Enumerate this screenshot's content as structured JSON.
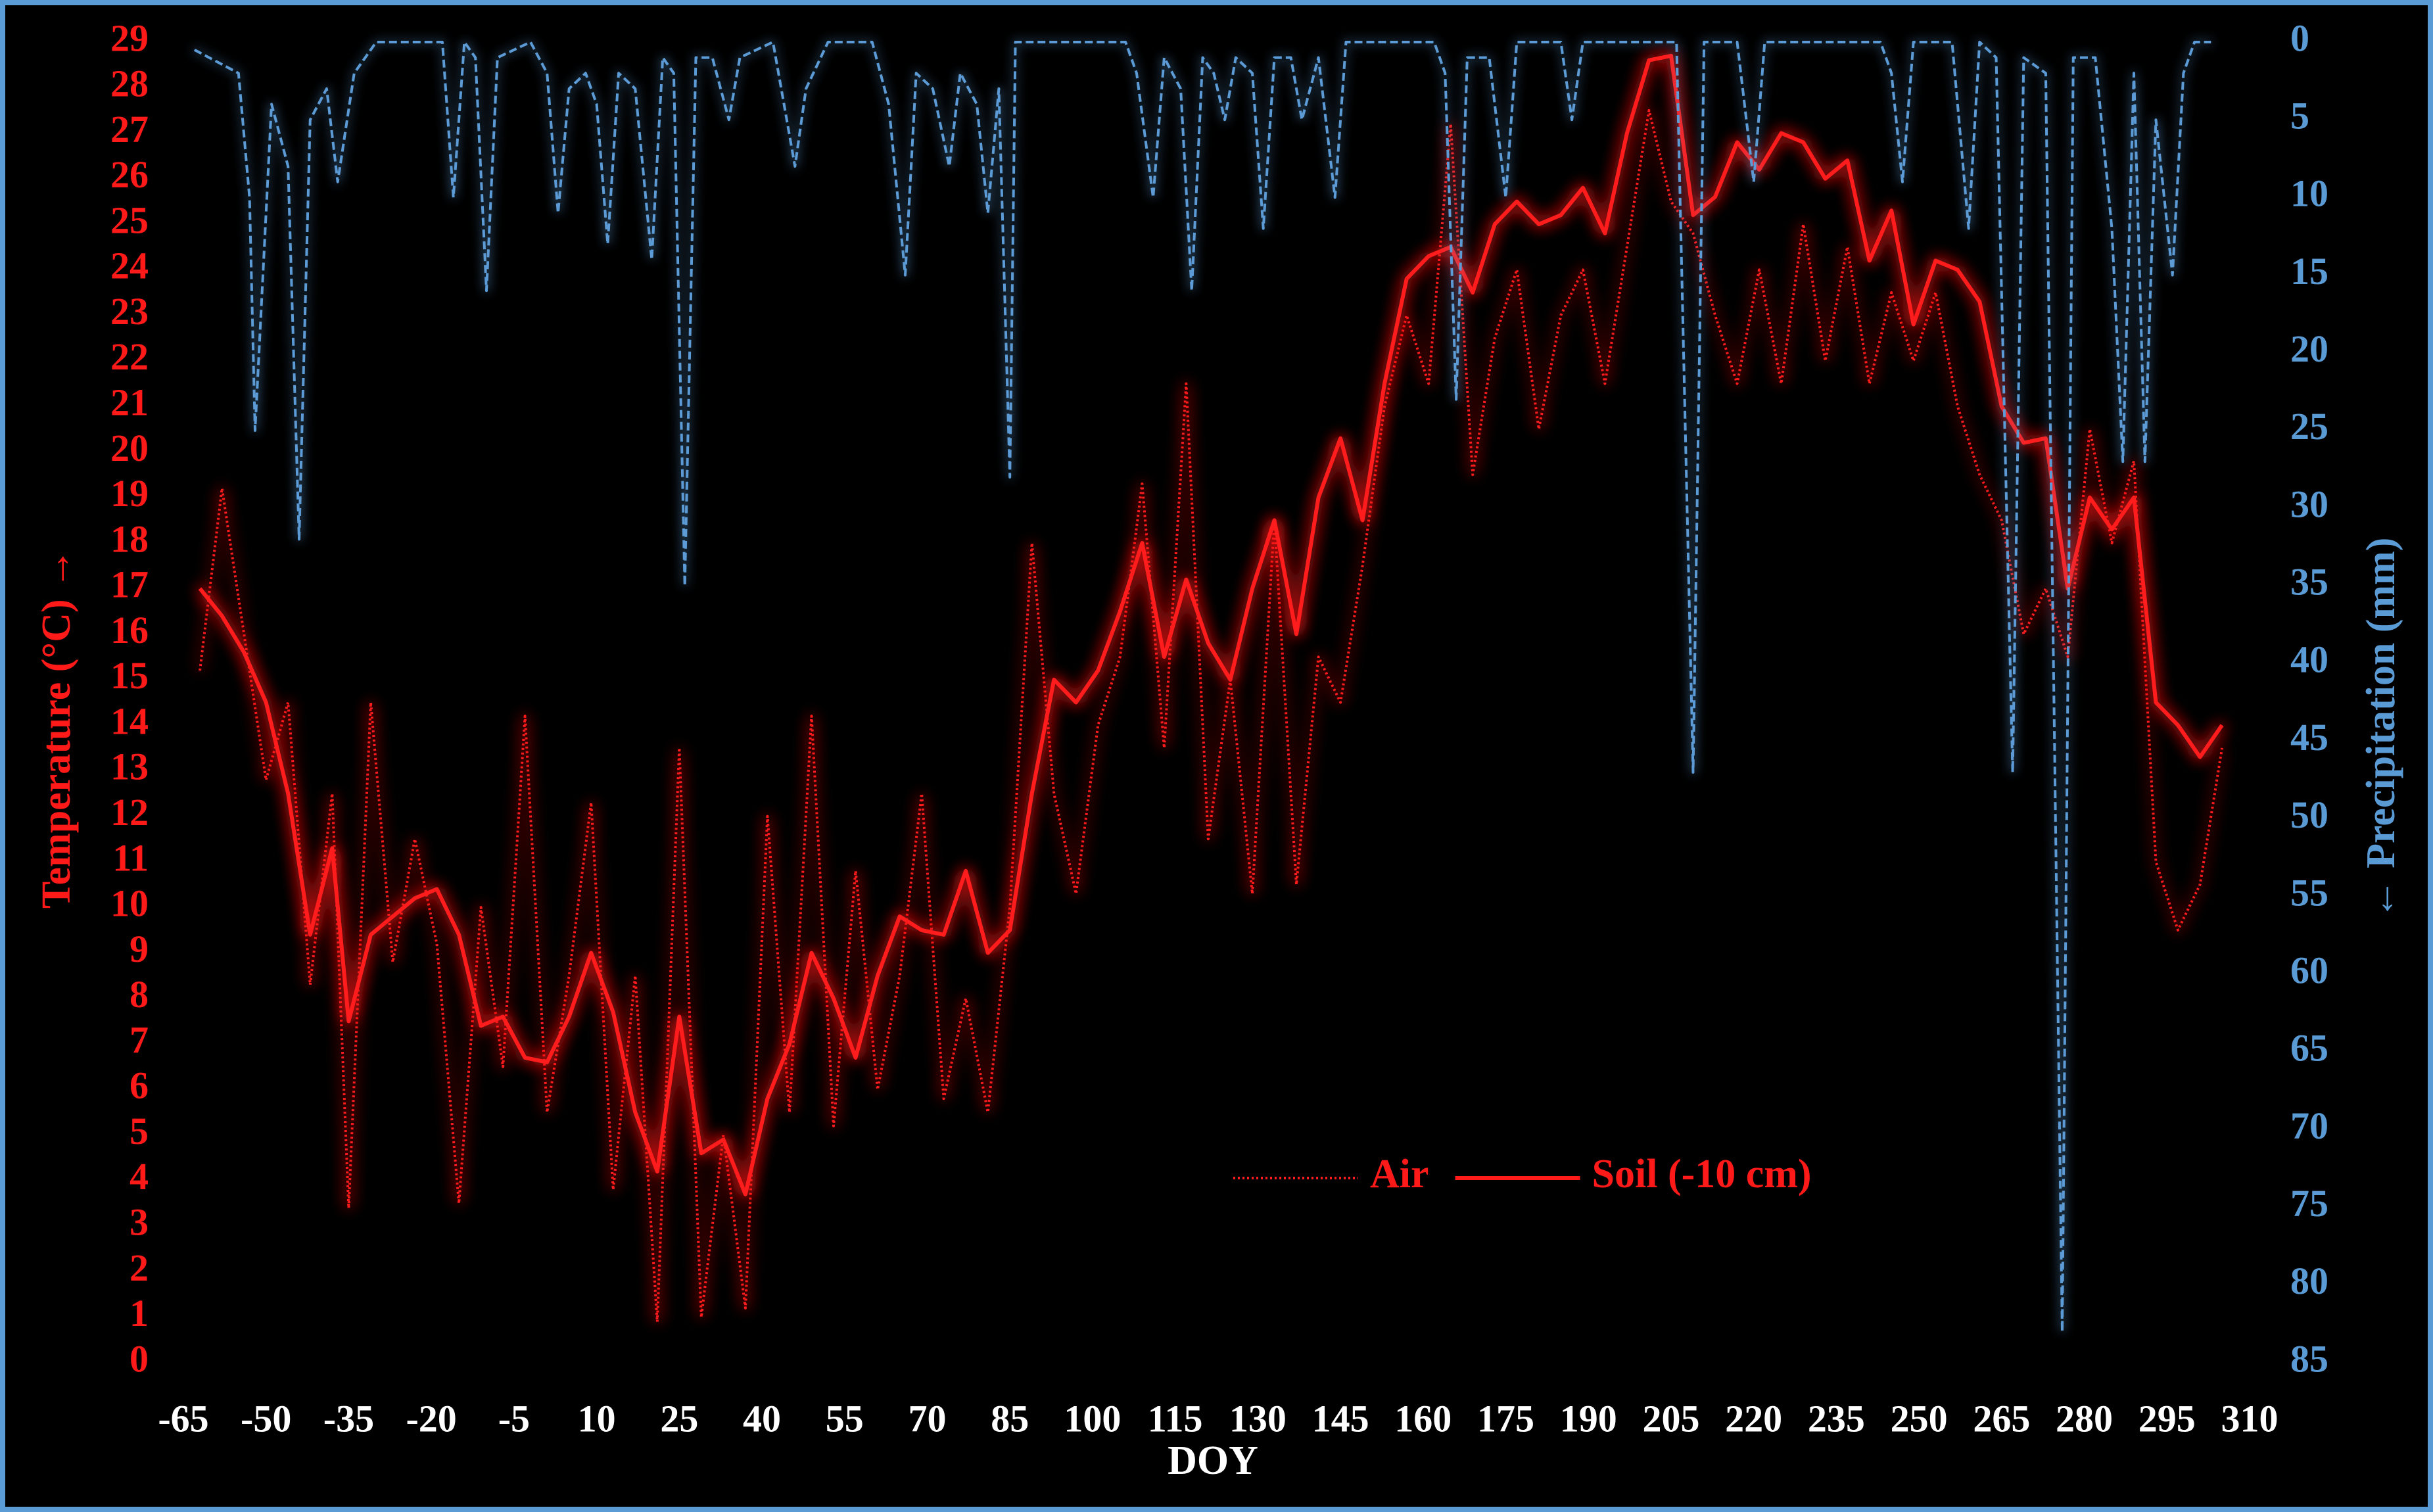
{
  "chart_data": {
    "type": "line",
    "xlabel": "DOY",
    "ylabel": "Temperature (°C) →",
    "y2label": "← Precipitation (mm)",
    "x": [
      -62,
      -58,
      -54,
      -50,
      -46,
      -42,
      -38,
      -35,
      -31,
      -27,
      -23,
      -19,
      -15,
      -11,
      -7,
      -3,
      1,
      5,
      9,
      13,
      17,
      21,
      25,
      29,
      33,
      37,
      41,
      45,
      49,
      53,
      57,
      61,
      65,
      69,
      73,
      77,
      81,
      85,
      89,
      93,
      97,
      101,
      105,
      109,
      113,
      117,
      121,
      125,
      129,
      133,
      137,
      141,
      145,
      149,
      153,
      157,
      161,
      165,
      169,
      173,
      177,
      181,
      185,
      189,
      193,
      197,
      201,
      205,
      209,
      213,
      217,
      221,
      225,
      229,
      233,
      237,
      241,
      245,
      249,
      253,
      257,
      261,
      265,
      269,
      273,
      277,
      281,
      285,
      289,
      293,
      297,
      301,
      305
    ],
    "series": [
      {
        "name": "Air",
        "color": "#ff1a1a",
        "style": "dotted",
        "values": [
          15.2,
          19.2,
          16,
          12.8,
          14.5,
          8.3,
          12.5,
          3.4,
          14.5,
          8.8,
          11.5,
          9.2,
          3.5,
          10,
          6.5,
          14.2,
          5.5,
          8.5,
          12.3,
          3.8,
          8.5,
          0.9,
          13.5,
          1.0,
          5.0,
          1.2,
          12.0,
          5.5,
          14.2,
          5.2,
          10.8,
          6.0,
          8.5,
          12.5,
          5.8,
          8.0,
          5.5,
          10.0,
          18.0,
          12.5,
          10.3,
          14.0,
          15.5,
          19.3,
          13.5,
          21.5,
          11.5,
          15.0,
          10.3,
          18.5,
          10.5,
          15.5,
          14.5,
          17.5,
          21.0,
          23.0,
          21.5,
          27.2,
          19.5,
          22.5,
          24.0,
          20.5,
          23.0,
          24.0,
          21.5,
          24.5,
          27.5,
          25.5,
          24.8,
          23.0,
          21.5,
          24.0,
          21.5,
          25.0,
          22.0,
          24.5,
          21.5,
          23.5,
          22.0,
          23.5,
          21.0,
          19.5,
          18.5,
          16.0,
          17.0,
          15.5,
          20.5,
          18.0,
          19.8,
          11.0,
          9.5,
          10.5,
          13.5
        ]
      },
      {
        "name": "Soil (-10 cm)",
        "color": "#ff1a1a",
        "style": "solid",
        "values": [
          17,
          16.4,
          15.6,
          14.5,
          12.5,
          9.4,
          11.3,
          7.5,
          9.4,
          9.8,
          10.2,
          10.4,
          9.4,
          7.4,
          7.6,
          6.7,
          6.6,
          7.6,
          9.0,
          7.7,
          5.5,
          4.2,
          7.6,
          4.6,
          4.9,
          3.7,
          5.8,
          7.0,
          9.0,
          8.0,
          6.7,
          8.5,
          9.8,
          9.5,
          9.4,
          10.8,
          9.0,
          9.5,
          12.5,
          15.0,
          14.5,
          15.2,
          16.5,
          18.0,
          15.5,
          17.2,
          15.8,
          15.0,
          17.0,
          18.5,
          16.0,
          19.0,
          20.3,
          18.5,
          21.5,
          23.8,
          24.3,
          24.5,
          23.5,
          25.0,
          25.5,
          25.0,
          25.2,
          25.8,
          24.8,
          27.0,
          28.6,
          28.7,
          25.2,
          25.6,
          26.8,
          26.2,
          27.0,
          26.8,
          26.0,
          26.4,
          24.2,
          25.3,
          22.8,
          24.2,
          24.0,
          23.3,
          21.0,
          20.2,
          20.3,
          17.0,
          19.0,
          18.3,
          19.0,
          14.5,
          14.0,
          13.3,
          14.0
        ]
      },
      {
        "color": "#5b9bd5",
        "style": "dashed",
        "axis": "y2",
        "x": [
          -63,
          -55,
          -53,
          -52,
          -49,
          -46,
          -44,
          -42,
          -39,
          -37,
          -34,
          -30,
          -18,
          -16,
          -14,
          -12,
          -10,
          -8,
          -2,
          1,
          3,
          5,
          8,
          10,
          12,
          14,
          17,
          20,
          22,
          24,
          26,
          28,
          31,
          34,
          36,
          42,
          44,
          46,
          48,
          52,
          60,
          63,
          66,
          68,
          71,
          74,
          76,
          79,
          81,
          83,
          85,
          86,
          106,
          108,
          111,
          113,
          116,
          118,
          120,
          122,
          124,
          126,
          129,
          131,
          133,
          136,
          138,
          141,
          144,
          146,
          162,
          164,
          166,
          168,
          172,
          175,
          177,
          185,
          187,
          189,
          206,
          209,
          211,
          217,
          220,
          222,
          243,
          245,
          247,
          249,
          256,
          259,
          261,
          264,
          267,
          269,
          273,
          276,
          278,
          282,
          285,
          287,
          289,
          291,
          293,
          296,
          298,
          300,
          303
        ],
        "values": [
          0.5,
          2,
          10,
          25,
          4,
          8,
          32,
          5,
          3,
          9,
          2,
          0,
          0,
          10,
          0,
          1,
          16,
          1,
          0,
          2,
          11,
          3,
          2,
          4,
          13,
          2,
          3,
          14,
          1,
          2,
          35,
          1,
          1,
          5,
          1,
          0,
          4,
          8,
          3,
          0,
          0,
          4,
          15,
          2,
          3,
          8,
          2,
          4,
          11,
          3,
          28,
          0,
          0,
          2,
          10,
          1,
          3,
          16,
          1,
          2,
          5,
          1,
          2,
          12,
          1,
          1,
          5,
          1,
          10,
          0,
          0,
          2,
          23,
          1,
          1,
          10,
          0,
          0,
          5,
          0,
          0,
          47,
          0,
          0,
          9,
          0,
          0,
          2,
          9,
          0,
          0,
          12,
          0,
          1,
          47,
          1,
          2,
          83,
          1,
          1,
          12,
          27,
          2,
          27,
          5,
          15,
          2,
          0,
          0
        ]
      }
    ],
    "xlim": [
      -65,
      310
    ],
    "xticks": [
      -65,
      -50,
      -35,
      -20,
      -5,
      10,
      25,
      40,
      55,
      70,
      85,
      100,
      115,
      130,
      145,
      160,
      175,
      190,
      205,
      220,
      235,
      250,
      265,
      280,
      295,
      310
    ],
    "ylim": [
      0,
      29
    ],
    "yticks": [
      0,
      1,
      2,
      3,
      4,
      5,
      6,
      7,
      8,
      9,
      10,
      11,
      12,
      13,
      14,
      15,
      16,
      17,
      18,
      19,
      20,
      21,
      22,
      23,
      24,
      25,
      26,
      27,
      28,
      29
    ],
    "y2lim": [
      0,
      85
    ],
    "y2ticks": [
      0,
      5,
      10,
      15,
      20,
      25,
      30,
      35,
      40,
      45,
      50,
      55,
      60,
      65,
      70,
      75,
      80,
      85
    ],
    "y2_inverted": true,
    "y_color": "#ff1a1a",
    "y2_color": "#5b9bd5",
    "grid": false,
    "legend": "bottom-center"
  }
}
